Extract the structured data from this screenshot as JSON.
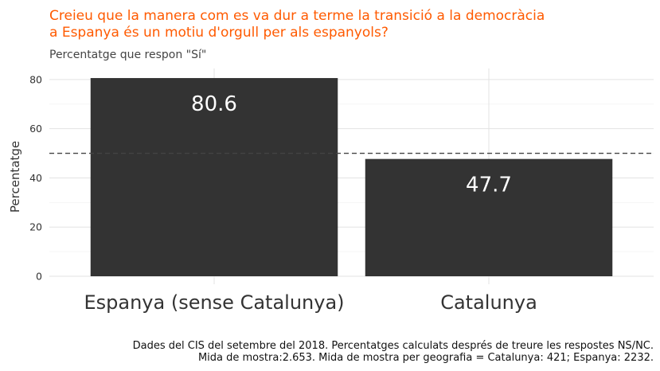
{
  "chart_data": {
    "type": "bar",
    "title_lines": [
      "Creieu que la manera com es va dur a terme la transició a la democràcia",
      "a Espanya és un motiu d'orgull per als espanyols?"
    ],
    "subtitle": "Percentatge que respon \"Sí\"",
    "ylabel": "Percentatge",
    "xlabel": "",
    "categories": [
      "Espanya (sense Catalunya)",
      "Catalunya"
    ],
    "values": [
      80.6,
      47.7
    ],
    "data_labels": [
      "80.6",
      "47.7"
    ],
    "yticks": [
      0,
      20,
      40,
      60,
      80
    ],
    "ylim": [
      0,
      84.5
    ],
    "reference_line": 50,
    "grid": true,
    "bar_color": "#333333",
    "title_color": "#FF5A00",
    "caption_lines": [
      "Dades del CIS del setembre del 2018. Percentatges calculats després de treure les respostes NS/NC.",
      "Mida de mostra:2.653. Mida de mostra per geografia = Catalunya: 421; Espanya: 2232."
    ]
  }
}
